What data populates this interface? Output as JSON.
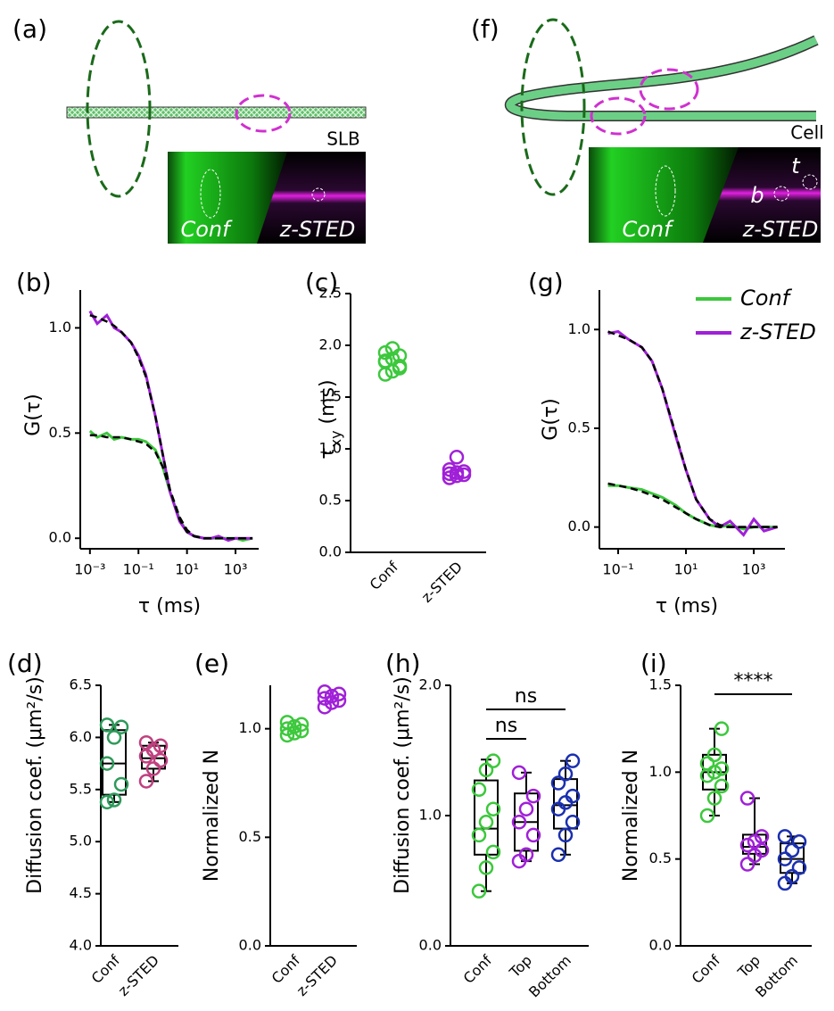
{
  "diagrams": [
    {
      "panel": "(a)",
      "tag": "SLB",
      "image_labels": [
        "Conf",
        "z-STED"
      ]
    },
    {
      "panel": "(f)",
      "tag": "Cell",
      "image_labels": [
        "Conf",
        "z-STED"
      ],
      "markers": [
        "t",
        "b"
      ]
    }
  ],
  "chart_data": [
    {
      "panel": "(b)",
      "type": "line",
      "x_label": "τ (ms)",
      "y_label": "G(τ)",
      "xscale": "log",
      "xlim": [
        0.0004,
        9000
      ],
      "xticks": [
        {
          "value": 0.001,
          "label": "10⁻³"
        },
        {
          "value": 0.1,
          "label": "10⁻¹"
        },
        {
          "value": 10,
          "label": "10¹"
        },
        {
          "value": 1000,
          "label": "10³"
        }
      ],
      "ylim": [
        -0.05,
        1.18
      ],
      "yticks": [
        {
          "value": 0,
          "label": "0.0"
        },
        0.5,
        {
          "value": 1,
          "label": "1.0"
        }
      ],
      "x": [
        0.001,
        0.002,
        0.005,
        0.01,
        0.02,
        0.05,
        0.1,
        0.2,
        0.5,
        1,
        2,
        5,
        10,
        20,
        50,
        100,
        200,
        500,
        1000,
        2000,
        5000
      ],
      "series": [
        {
          "color": "#3cc83c",
          "values": [
            0.51,
            0.48,
            0.5,
            0.47,
            0.48,
            0.47,
            0.47,
            0.46,
            0.42,
            0.34,
            0.22,
            0.09,
            0.03,
            0.01,
            0,
            0,
            0,
            0,
            0,
            -0.01,
            0
          ]
        },
        {
          "color": "#a020d8",
          "values": [
            1.08,
            1.02,
            1.06,
            1,
            0.98,
            0.93,
            0.87,
            0.78,
            0.58,
            0.4,
            0.22,
            0.08,
            0.03,
            0.01,
            0,
            0,
            0.01,
            -0.01,
            0,
            0,
            0
          ]
        },
        {
          "color": "#000000",
          "dash": true,
          "values": [
            0.49,
            0.49,
            0.48,
            0.48,
            0.48,
            0.47,
            0.46,
            0.45,
            0.41,
            0.34,
            0.23,
            0.1,
            0.04,
            0.01,
            0,
            0,
            0,
            0,
            0,
            0,
            0
          ]
        },
        {
          "color": "#000000",
          "dash": true,
          "values": [
            1.06,
            1.05,
            1.03,
            1.01,
            0.98,
            0.93,
            0.86,
            0.77,
            0.58,
            0.4,
            0.23,
            0.09,
            0.03,
            0.01,
            0,
            0,
            0,
            0,
            0,
            0,
            0
          ]
        }
      ]
    },
    {
      "panel": "(c)",
      "type": "strip",
      "y_label_parts": [
        {
          "text": "τ"
        },
        {
          "text": "xy",
          "sub": true
        },
        {
          "text": " (ms)"
        }
      ],
      "ylim": [
        0,
        2.5
      ],
      "yticks": [
        {
          "value": 0,
          "label": "0.0"
        },
        0.5,
        {
          "value": 1,
          "label": "1.0"
        },
        1.5,
        {
          "value": 2,
          "label": "2.0"
        },
        2.5
      ],
      "categories": [
        "Conf",
        "z-STED"
      ],
      "groups": [
        {
          "color": "#3cc83c",
          "values": [
            1.72,
            1.75,
            1.8,
            1.84,
            1.87,
            1.9,
            1.93,
            1.97,
            1.78,
            1.85
          ]
        },
        {
          "color": "#a020d8",
          "values": [
            0.72,
            0.74,
            0.75,
            0.76,
            0.77,
            0.78,
            0.8,
            0.92
          ]
        }
      ]
    },
    {
      "panel": "(g)",
      "type": "line",
      "x_label": "τ (ms)",
      "y_label": "G(τ)",
      "xscale": "log",
      "xlim": [
        0.028,
        8300
      ],
      "legend": "upper right",
      "xticks": [
        {
          "value": 0.1,
          "label": "10⁻¹"
        },
        {
          "value": 10,
          "label": "10¹"
        },
        {
          "value": 1000,
          "label": "10³"
        }
      ],
      "ylim": [
        -0.11,
        1.2
      ],
      "yticks": [
        {
          "value": 0,
          "label": "0.0"
        },
        0.5,
        {
          "value": 1,
          "label": "1.0"
        }
      ],
      "x": [
        0.05,
        0.1,
        0.2,
        0.5,
        1,
        2,
        5,
        10,
        20,
        50,
        100,
        200,
        500,
        1000,
        2000,
        5000
      ],
      "series": [
        {
          "name": "Conf",
          "color": "#3cc83c",
          "values": [
            0.21,
            0.21,
            0.2,
            0.19,
            0.17,
            0.15,
            0.11,
            0.07,
            0.04,
            0.01,
            0,
            0.01,
            -0.01,
            0,
            0,
            0
          ]
        },
        {
          "name": "z-STED",
          "color": "#a020d8",
          "values": [
            0.98,
            0.99,
            0.95,
            0.91,
            0.84,
            0.7,
            0.46,
            0.29,
            0.14,
            0.04,
            0,
            0.03,
            -0.04,
            0.04,
            -0.02,
            0
          ]
        },
        {
          "color": "#000000",
          "dash": true,
          "values": [
            0.22,
            0.21,
            0.2,
            0.18,
            0.16,
            0.14,
            0.1,
            0.07,
            0.04,
            0.01,
            0,
            0,
            0,
            0,
            0,
            0
          ]
        },
        {
          "color": "#000000",
          "dash": true,
          "values": [
            0.99,
            0.97,
            0.95,
            0.91,
            0.84,
            0.7,
            0.47,
            0.29,
            0.14,
            0.04,
            0.01,
            0,
            0,
            0,
            0,
            0
          ]
        }
      ]
    },
    {
      "panel": "(d)",
      "type": "box",
      "y_label": "Diffusion coef. (μm²/s)",
      "ylim": [
        4,
        6.5
      ],
      "yticks": [
        {
          "value": 4,
          "label": "4.0"
        },
        4.5,
        {
          "value": 5,
          "label": "5.0"
        },
        5.5,
        {
          "value": 6,
          "label": "6.0"
        },
        6.5
      ],
      "categories": [
        "Conf",
        "z-STED"
      ],
      "groups": [
        {
          "color": "#2e9a5a",
          "values": [
            5.38,
            5.4,
            5.55,
            5.75,
            6,
            6.1,
            6.12
          ],
          "box": {
            "min": 5.38,
            "q1": 5.45,
            "median": 5.75,
            "q3": 6.07,
            "max": 6.12
          }
        },
        {
          "color": "#c0407f",
          "values": [
            5.58,
            5.7,
            5.78,
            5.82,
            5.88,
            5.92,
            5.95
          ],
          "box": {
            "min": 5.58,
            "q1": 5.7,
            "median": 5.8,
            "q3": 5.92,
            "max": 5.95
          }
        }
      ]
    },
    {
      "panel": "(e)",
      "type": "strip",
      "y_label": "Normalized N",
      "ylim": [
        0,
        1.2
      ],
      "yticks": [
        {
          "value": 0,
          "label": "0.0"
        },
        0.5,
        {
          "value": 1,
          "label": "1.0"
        }
      ],
      "categories": [
        "Conf",
        "z-STED"
      ],
      "groups": [
        {
          "color": "#3cc83c",
          "values": [
            0.97,
            0.98,
            0.99,
            1,
            1.01,
            1.02,
            1.03
          ]
        },
        {
          "color": "#a020d8",
          "values": [
            1.1,
            1.12,
            1.13,
            1.14,
            1.15,
            1.16,
            1.17
          ]
        }
      ]
    },
    {
      "panel": "(h)",
      "type": "box",
      "y_label": "Diffusion coef. (μm²/s)",
      "annotations": [
        "ns",
        "ns"
      ],
      "ylim": [
        0,
        2
      ],
      "yticks": [
        {
          "value": 0,
          "label": "0.0"
        },
        {
          "value": 1,
          "label": "1.0"
        },
        {
          "value": 2,
          "label": "2.0"
        }
      ],
      "categories": [
        "Conf",
        "Top",
        "Bottom"
      ],
      "groups": [
        {
          "color": "#3cc83c",
          "values": [
            0.42,
            0.6,
            0.72,
            0.85,
            0.95,
            1.05,
            1.2,
            1.35,
            1.42
          ],
          "box": {
            "min": 0.42,
            "q1": 0.7,
            "median": 0.9,
            "q3": 1.27,
            "max": 1.43
          }
        },
        {
          "color": "#a020d8",
          "values": [
            0.65,
            0.7,
            0.85,
            0.95,
            1.05,
            1.15,
            1.33
          ],
          "box": {
            "min": 0.65,
            "q1": 0.73,
            "median": 0.95,
            "q3": 1.17,
            "max": 1.33
          }
        },
        {
          "color": "#1a2fb0",
          "values": [
            0.7,
            0.85,
            0.95,
            1.05,
            1.1,
            1.15,
            1.25,
            1.32,
            1.42
          ],
          "box": {
            "min": 0.7,
            "q1": 0.9,
            "median": 1.08,
            "q3": 1.28,
            "max": 1.42
          }
        }
      ]
    },
    {
      "panel": "(i)",
      "type": "box",
      "y_label": "Normalized N",
      "annotations": [
        "****"
      ],
      "ylim": [
        0,
        1.5
      ],
      "yticks": [
        {
          "value": 0,
          "label": "0.0"
        },
        0.5,
        {
          "value": 1,
          "label": "1.0"
        },
        1.5
      ],
      "categories": [
        "Conf",
        "Top",
        "Bottom"
      ],
      "groups": [
        {
          "color": "#3cc83c",
          "values": [
            0.75,
            0.85,
            0.92,
            0.98,
            1,
            1.02,
            1.05,
            1.1,
            1.25
          ],
          "box": {
            "min": 0.75,
            "q1": 0.9,
            "median": 1,
            "q3": 1.1,
            "max": 1.25
          }
        },
        {
          "color": "#a020d8",
          "values": [
            0.47,
            0.52,
            0.55,
            0.58,
            0.6,
            0.63,
            0.85
          ],
          "box": {
            "min": 0.47,
            "q1": 0.53,
            "median": 0.57,
            "q3": 0.64,
            "max": 0.85
          }
        },
        {
          "color": "#1a2fb0",
          "values": [
            0.36,
            0.4,
            0.45,
            0.5,
            0.55,
            0.6,
            0.63
          ],
          "box": {
            "min": 0.36,
            "q1": 0.42,
            "median": 0.5,
            "q3": 0.59,
            "max": 0.63
          }
        }
      ]
    }
  ]
}
